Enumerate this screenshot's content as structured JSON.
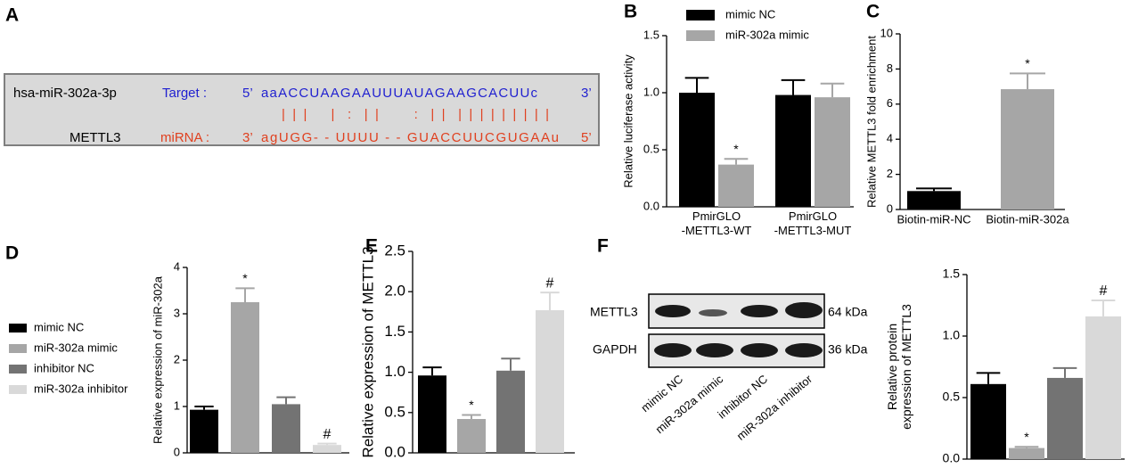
{
  "sequence_panel": {
    "panel": "A",
    "target_name": "hsa-miR-302a-3p",
    "target_label": "Target :",
    "target_5": "5’",
    "target_seq": "aaACCUAAGAAUUUAUAGAAGCACUUc",
    "target_3": "3’",
    "pairing": "| | |    |  :  | |      :  | |  | | | | | | | | |",
    "mirna_name": "METTL3",
    "mirna_label": "miRNA :",
    "mirna_3": "3’",
    "mirna_seq": "agUGG- - UUUU - - GUACCUUCGUGAAu",
    "mirna_5": "5’"
  },
  "blot": {
    "panel": "F",
    "bands": [
      {
        "label": "METTL3",
        "size": "64 kDa"
      },
      {
        "label": "GAPDH",
        "size": "36 kDa"
      }
    ],
    "lanes": [
      "mimic NC",
      "miR-302a mimic",
      "inhibitor NC",
      "miR-302a inhibitor"
    ]
  },
  "chart_data": [
    {
      "panel": "B",
      "type": "bar",
      "ylabel": "Relative luciferase activity",
      "categories": [
        "PmirGLO\n-METTL3-WT",
        "PmirGLO\n-METTL3-MUT"
      ],
      "series": [
        {
          "name": "mimic NC",
          "color": "#000000",
          "values": [
            1.0,
            0.98
          ],
          "errors": [
            0.13,
            0.13
          ]
        },
        {
          "name": "miR-302a mimic",
          "color": "#a6a6a6",
          "values": [
            0.37,
            0.96
          ],
          "errors": [
            0.05,
            0.12
          ],
          "sig": [
            "*",
            null
          ]
        }
      ],
      "ylim": [
        0,
        1.5
      ],
      "yticks": [
        {
          "value": 0,
          "label": "0.0"
        },
        {
          "value": 0.5,
          "label": "0.5"
        },
        {
          "value": 1,
          "label": "1.0"
        },
        {
          "value": 1.5,
          "label": "1.5"
        }
      ],
      "legend": "top"
    },
    {
      "panel": "C",
      "type": "bar",
      "ylabel": "Relative METTL3 fold enrichment",
      "categories": [
        "Biotin-miR-NC",
        "Biotin-miR-302a"
      ],
      "values": [
        1.05,
        6.85
      ],
      "errors": [
        0.15,
        0.9
      ],
      "colors": [
        "#000000",
        "#a6a6a6"
      ],
      "sig": [
        null,
        "*"
      ],
      "ylim": [
        0,
        10
      ],
      "yticks": [
        0,
        2,
        4,
        6,
        8,
        10
      ]
    },
    {
      "panel": "D",
      "type": "bar",
      "ylabel": "Relative expression of miR-302a",
      "categories": [
        null
      ],
      "series": [
        {
          "name": "mimic NC",
          "color": "#000000",
          "values": [
            0.93
          ],
          "errors": [
            0.07
          ]
        },
        {
          "name": "miR-302a mimic",
          "color": "#a6a6a6",
          "values": [
            3.25
          ],
          "errors": [
            0.3
          ],
          "sig": [
            "*"
          ]
        },
        {
          "name": "inhibitor NC",
          "color": "#737373",
          "values": [
            1.05
          ],
          "errors": [
            0.15
          ]
        },
        {
          "name": "miR-302a inhibitor",
          "color": "#d9d9d9",
          "values": [
            0.17
          ],
          "errors": [
            0.03
          ],
          "sig": [
            "#"
          ]
        }
      ],
      "ylim": [
        0,
        4
      ],
      "yticks": [
        0,
        1,
        2,
        3,
        4
      ],
      "legend": "left"
    },
    {
      "panel": "E",
      "type": "bar",
      "ylabel": "Relative expression of METTL3",
      "categories": [
        null
      ],
      "series": [
        {
          "color": "#000000",
          "values": [
            0.96
          ],
          "errors": [
            0.1
          ]
        },
        {
          "color": "#a6a6a6",
          "values": [
            0.42
          ],
          "errors": [
            0.05
          ],
          "sig": [
            "*"
          ]
        },
        {
          "color": "#737373",
          "values": [
            1.02
          ],
          "errors": [
            0.15
          ]
        },
        {
          "color": "#d9d9d9",
          "values": [
            1.77
          ],
          "errors": [
            0.22
          ],
          "sig": [
            "#"
          ]
        }
      ],
      "ylim": [
        0,
        2.5
      ],
      "yticks": [
        {
          "value": 0,
          "label": "0.0"
        },
        {
          "value": 0.5,
          "label": "0.5"
        },
        {
          "value": 1,
          "label": "1.0"
        },
        {
          "value": 1.5,
          "label": "1.5"
        },
        {
          "value": 2,
          "label": "2.0"
        },
        {
          "value": 2.5,
          "label": "2.5"
        }
      ]
    },
    {
      "type": "bar",
      "ylabel": "Relative protein\nexpression of METTL3",
      "categories": [
        null
      ],
      "series": [
        {
          "color": "#000000",
          "values": [
            0.61
          ],
          "errors": [
            0.09
          ]
        },
        {
          "color": "#a6a6a6",
          "values": [
            0.09
          ],
          "errors": [
            0.01
          ],
          "sig": [
            "*"
          ]
        },
        {
          "color": "#737373",
          "values": [
            0.66
          ],
          "errors": [
            0.08
          ]
        },
        {
          "color": "#d9d9d9",
          "values": [
            1.16
          ],
          "errors": [
            0.13
          ],
          "sig": [
            "#"
          ]
        }
      ],
      "ylim": [
        0,
        1.5
      ],
      "yticks": [
        {
          "value": 0,
          "label": "0.0"
        },
        {
          "value": 0.5,
          "label": "0.5"
        },
        {
          "value": 1,
          "label": "1.0"
        },
        {
          "value": 1.5,
          "label": "1.5"
        }
      ]
    }
  ]
}
